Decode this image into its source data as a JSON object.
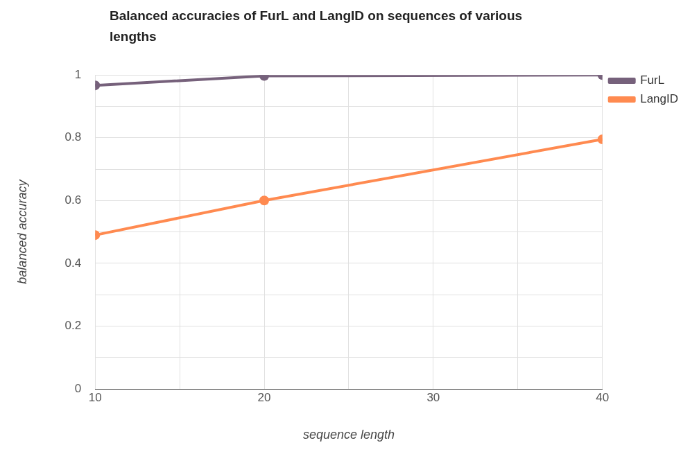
{
  "chart_data": {
    "type": "line",
    "title": "Balanced accuracies of FurL and LangID on sequences of various lengths",
    "xlabel": "sequence length",
    "ylabel": "balanced accuracy",
    "x": [
      10,
      20,
      40
    ],
    "series": [
      {
        "name": "FurL",
        "color": "#76617b",
        "values": [
          0.967,
          0.997,
          1.0
        ]
      },
      {
        "name": "LangID",
        "color": "#ff8a50",
        "values": [
          0.49,
          0.6,
          0.795
        ]
      }
    ],
    "xlim": [
      10,
      40
    ],
    "xticks": [
      10,
      {
        "value": 15,
        "label": null
      },
      20,
      {
        "value": 25,
        "label": null
      },
      30,
      {
        "value": 35,
        "label": null
      },
      40
    ],
    "ylim": [
      0,
      1
    ],
    "yticks": [
      0,
      {
        "value": 0.1,
        "label": null
      },
      0.2,
      {
        "value": 0.3,
        "label": null
      },
      0.4,
      {
        "value": 0.5,
        "label": null
      },
      0.6,
      {
        "value": 0.7,
        "label": null
      },
      0.8,
      {
        "value": 0.9,
        "label": null
      },
      1
    ],
    "grid": true,
    "legend": "right",
    "marker": "circle",
    "line_style": "solid"
  }
}
